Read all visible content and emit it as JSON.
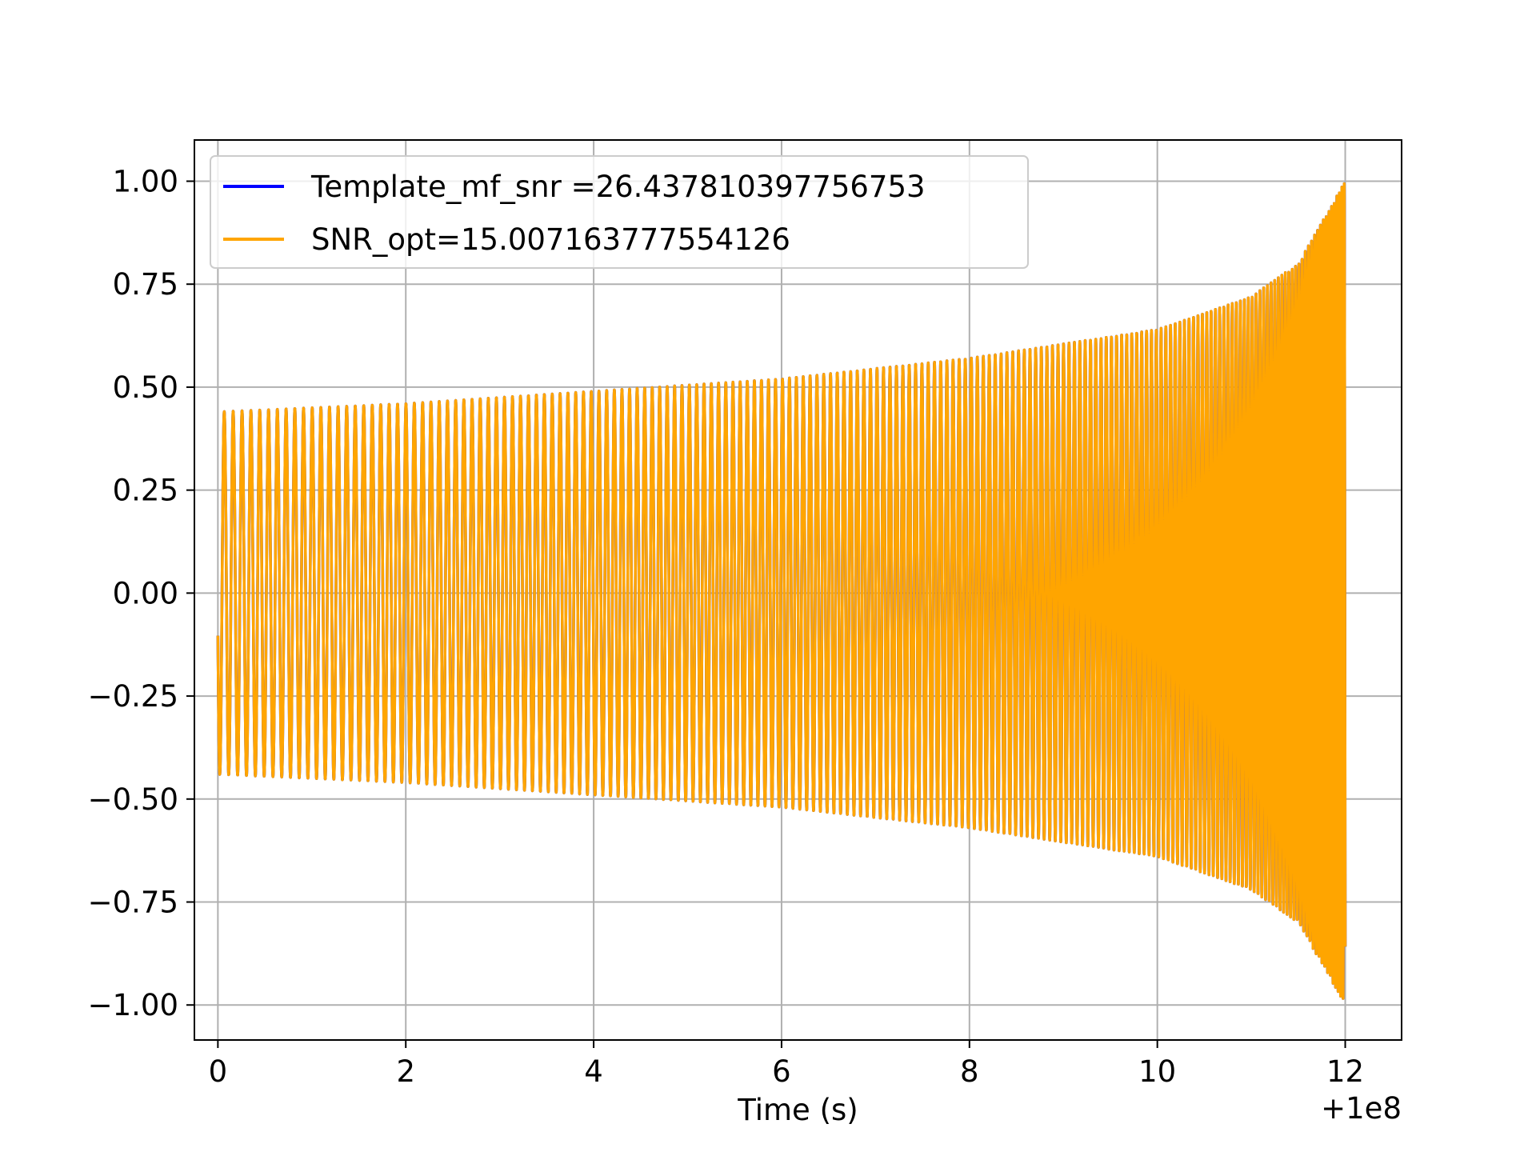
{
  "chart_data": {
    "type": "line",
    "title": "",
    "xlabel": "Time (s)",
    "ylabel": "",
    "x_offset_label": "+1e8",
    "xlim": [
      -0.25,
      12.6
    ],
    "ylim": [
      -1.085,
      1.1
    ],
    "xticks": [
      0,
      2,
      4,
      6,
      8,
      10,
      12
    ],
    "xtick_labels": [
      "0",
      "2",
      "4",
      "6",
      "8",
      "10",
      "12"
    ],
    "yticks": [
      1.0,
      0.75,
      0.5,
      0.25,
      0.0,
      -0.25,
      -0.5,
      -0.75,
      -1.0
    ],
    "ytick_labels": [
      "1.00",
      "0.75",
      "0.50",
      "0.25",
      "0.00",
      "−0.25",
      "−0.50",
      "−0.75",
      "−1.00"
    ],
    "grid": true,
    "legend_position": "upper-left",
    "series": [
      {
        "name": "Template_mf_snr =26.437810397756753",
        "color": "#0000ff",
        "x_range": [
          0,
          12
        ],
        "amplitude_envelope": {
          "x": [
            0,
            2,
            4,
            6,
            8,
            10,
            11,
            11.5,
            12
          ],
          "y": [
            0.44,
            0.46,
            0.49,
            0.52,
            0.57,
            0.64,
            0.72,
            0.8,
            1.0
          ]
        },
        "chirp": true
      },
      {
        "name": "SNR_opt=15.007163777554126",
        "color": "#ffa500",
        "x_range": [
          0,
          12
        ],
        "amplitude_envelope": {
          "x": [
            0,
            2,
            4,
            6,
            8,
            10,
            11,
            11.5,
            12
          ],
          "y": [
            0.44,
            0.46,
            0.49,
            0.52,
            0.57,
            0.64,
            0.72,
            0.8,
            1.0
          ]
        },
        "chirp": true
      }
    ]
  }
}
